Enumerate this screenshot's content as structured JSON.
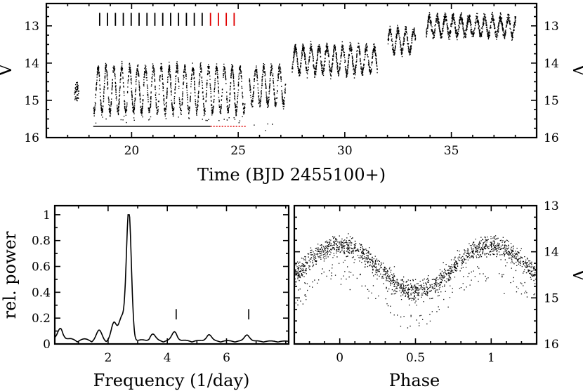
{
  "chart_data": [
    {
      "type": "scatter",
      "panel": "light-curve",
      "xlabel": "Time (BJD 2455100+)",
      "ylabel_left": "V",
      "ylabel_right": "V",
      "xlim": [
        16,
        39
      ],
      "ylim": [
        16,
        12.4
      ],
      "x_ticks": [
        20,
        25,
        30,
        35
      ],
      "y_ticks": [
        13,
        14,
        15,
        16
      ],
      "segments": [
        {
          "x": [
            17.3,
            17.5
          ],
          "y": [
            14.5,
            15.0
          ]
        },
        {
          "x": [
            18.2,
            25.3
          ],
          "mean": 14.7,
          "amp": 0.6,
          "period_days": 0.37,
          "low": 15.6
        },
        {
          "x": [
            25.5,
            27.2
          ],
          "mean": 14.6,
          "amp": 0.5,
          "period_days": 0.37,
          "low": 15.8
        },
        {
          "x": [
            27.5,
            31.5
          ],
          "mean": 13.9,
          "amp": 0.35,
          "period_days": 0.37
        },
        {
          "x": [
            32.0,
            33.3
          ],
          "mean": 13.4,
          "amp": 0.3,
          "period_days": 0.37
        },
        {
          "x": [
            33.8,
            38.0
          ],
          "mean": 13.0,
          "amp": 0.25,
          "period_days": 0.37
        }
      ],
      "black_markers_t": [
        18.5,
        18.87,
        19.24,
        19.61,
        19.98,
        20.35,
        20.72,
        21.09,
        21.46,
        21.83,
        22.2,
        22.57,
        22.94,
        23.31
      ],
      "red_markers_t": [
        23.7,
        24.07,
        24.44,
        24.81
      ],
      "marker_y_range": [
        12.65,
        13.0
      ],
      "baseline_black": {
        "t": [
          18.2,
          23.7
        ],
        "v": 15.7
      },
      "baseline_red_dotted": {
        "t": [
          23.7,
          25.4
        ],
        "v": 15.7
      },
      "colors": {
        "black": "#000000",
        "red": "#e00000"
      }
    },
    {
      "type": "line",
      "panel": "periodogram",
      "xlabel": "Frequency (1/day)",
      "ylabel": "rel. power",
      "xlim": [
        0.2,
        8.1
      ],
      "ylim": [
        0,
        1.07
      ],
      "x_ticks": [
        2,
        4,
        6
      ],
      "y_ticks": [
        0,
        0.2,
        0.4,
        0.6,
        0.8,
        1
      ],
      "y_tick_labels": [
        "0",
        "0.2",
        "0.4",
        "0.6",
        "0.8",
        "1"
      ],
      "peaks": [
        {
          "f": 0.4,
          "p": 0.09
        },
        {
          "f": 1.7,
          "p": 0.07
        },
        {
          "f": 2.2,
          "p": 0.13
        },
        {
          "f": 2.45,
          "p": 0.18
        },
        {
          "f": 2.7,
          "p": 1.0
        },
        {
          "f": 3.5,
          "p": 0.05
        },
        {
          "f": 4.25,
          "p": 0.07
        },
        {
          "f": 5.4,
          "p": 0.05
        },
        {
          "f": 6.7,
          "p": 0.05
        }
      ],
      "harmonic_markers": [
        {
          "f": 4.3,
          "p": [
            0.19,
            0.27
          ]
        },
        {
          "f": 6.75,
          "p": [
            0.19,
            0.27
          ]
        }
      ]
    },
    {
      "type": "scatter",
      "panel": "phase-folded",
      "xlabel": "Phase",
      "ylabel_right": "V",
      "xlim": [
        -0.3,
        1.3
      ],
      "ylim": [
        16,
        13
      ],
      "x_ticks": [
        0,
        0.5,
        1
      ],
      "x_tick_labels": [
        "0",
        "0.5",
        "1"
      ],
      "y_ticks": [
        13,
        14,
        15,
        16
      ],
      "curve": {
        "mean": 14.35,
        "amp": 0.5,
        "max_phase": 0.0,
        "min_phase": 0.5,
        "scatter": 0.3
      }
    }
  ]
}
